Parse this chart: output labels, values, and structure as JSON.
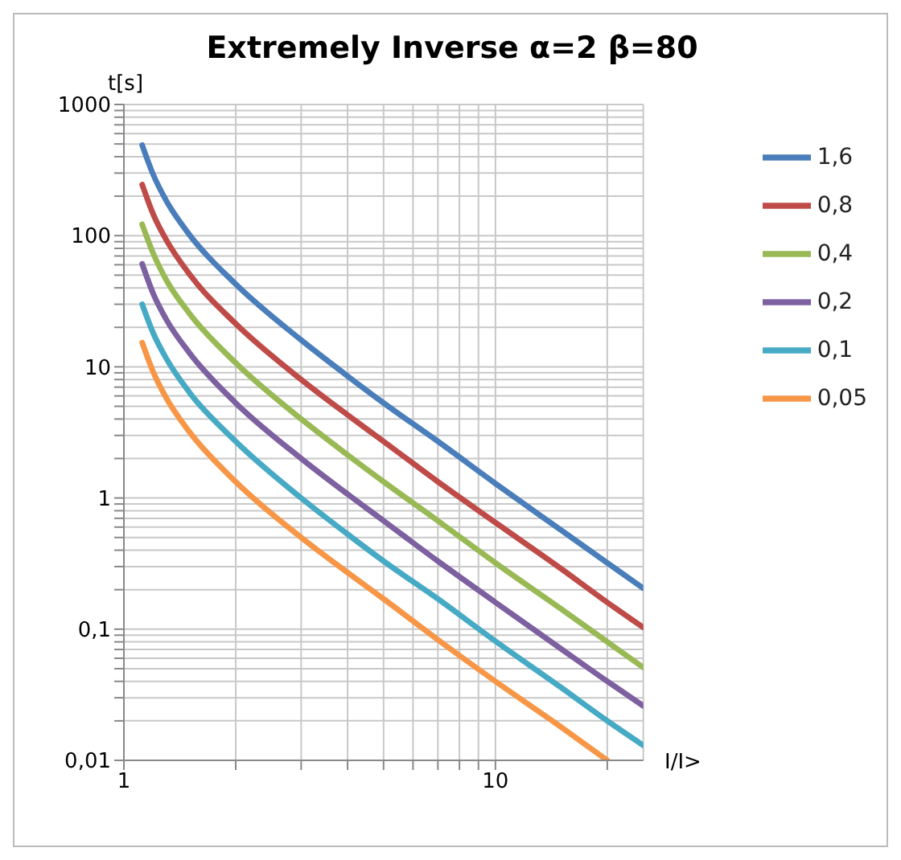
{
  "chart_data": {
    "type": "line",
    "title": "Extremely Inverse α=2 β=80",
    "xlabel": "I/I>",
    "ylabel": "t[s]",
    "log": "xy",
    "grid": true,
    "legend": "right",
    "marker": "none",
    "line_style": "solid",
    "x": [
      1.12,
      1.2,
      1.3,
      1.5,
      2,
      3,
      4,
      5,
      7,
      10,
      15,
      20,
      25
    ],
    "xlim": [
      1,
      25
    ],
    "xticks": [
      1,
      {
        "value": 2,
        "label": null
      },
      {
        "value": 3,
        "label": null
      },
      {
        "value": 4,
        "label": null
      },
      {
        "value": 5,
        "label": null
      },
      {
        "value": 6,
        "label": null
      },
      {
        "value": 7,
        "label": null
      },
      {
        "value": 8,
        "label": null
      },
      {
        "value": 9,
        "label": null
      },
      10,
      {
        "value": 20,
        "label": null
      }
    ],
    "ylim": [
      0.01,
      1000
    ],
    "yticks": [
      {
        "value": 0.01,
        "label": "0,01"
      },
      {
        "value": 0.02,
        "label": null
      },
      {
        "value": 0.03,
        "label": null
      },
      {
        "value": 0.04,
        "label": null
      },
      {
        "value": 0.05,
        "label": null
      },
      {
        "value": 0.06,
        "label": null
      },
      {
        "value": 0.07,
        "label": null
      },
      {
        "value": 0.08,
        "label": null
      },
      {
        "value": 0.09,
        "label": null
      },
      {
        "value": 0.1,
        "label": "0,1"
      },
      {
        "value": 0.2,
        "label": null
      },
      {
        "value": 0.3,
        "label": null
      },
      {
        "value": 0.4,
        "label": null
      },
      {
        "value": 0.5,
        "label": null
      },
      {
        "value": 0.6,
        "label": null
      },
      {
        "value": 0.7,
        "label": null
      },
      {
        "value": 0.8,
        "label": null
      },
      {
        "value": 0.9,
        "label": null
      },
      1,
      {
        "value": 2,
        "label": null
      },
      {
        "value": 3,
        "label": null
      },
      {
        "value": 4,
        "label": null
      },
      {
        "value": 5,
        "label": null
      },
      {
        "value": 6,
        "label": null
      },
      {
        "value": 7,
        "label": null
      },
      {
        "value": 8,
        "label": null
      },
      {
        "value": 9,
        "label": null
      },
      10,
      {
        "value": 20,
        "label": null
      },
      {
        "value": 30,
        "label": null
      },
      {
        "value": 40,
        "label": null
      },
      {
        "value": 50,
        "label": null
      },
      {
        "value": 60,
        "label": null
      },
      {
        "value": 70,
        "label": null
      },
      {
        "value": 80,
        "label": null
      },
      {
        "value": 90,
        "label": null
      },
      100,
      {
        "value": 200,
        "label": null
      },
      {
        "value": 300,
        "label": null
      },
      {
        "value": 400,
        "label": null
      },
      {
        "value": 500,
        "label": null
      },
      {
        "value": 600,
        "label": null
      },
      {
        "value": 700,
        "label": null
      },
      {
        "value": 800,
        "label": null
      },
      {
        "value": 900,
        "label": null
      },
      1000
    ],
    "series": [
      {
        "name": "1,6",
        "color": "#4a7ebb",
        "values": [
          490,
          291,
          185,
          102,
          42.7,
          16,
          8.5,
          5.3,
          2.7,
          1.29,
          0.57,
          0.32,
          0.205
        ]
      },
      {
        "name": "0,8",
        "color": "#be4b48",
        "values": [
          245,
          145,
          93,
          51,
          21.3,
          8,
          4.3,
          2.7,
          1.33,
          0.65,
          0.29,
          0.16,
          0.103
        ]
      },
      {
        "name": "0,4",
        "color": "#98b954",
        "values": [
          122,
          73,
          46,
          25.6,
          10.7,
          4,
          2.13,
          1.33,
          0.67,
          0.32,
          0.143,
          0.08,
          0.051
        ]
      },
      {
        "name": "0,2",
        "color": "#7d60a0",
        "values": [
          61,
          36,
          23,
          12.8,
          5.3,
          2,
          1.07,
          0.67,
          0.33,
          0.16,
          0.071,
          0.04,
          0.026
        ]
      },
      {
        "name": "0,1",
        "color": "#46aac5",
        "values": [
          30,
          18,
          11.6,
          6.4,
          2.7,
          1,
          0.53,
          0.33,
          0.17,
          0.081,
          0.036,
          0.02,
          0.013
        ]
      },
      {
        "name": "0,05",
        "color": "#f79646",
        "values": [
          15.3,
          9.1,
          5.8,
          3.2,
          1.33,
          0.5,
          0.27,
          0.17,
          0.083,
          0.04,
          0.018,
          0.01,
          null
        ]
      }
    ]
  }
}
